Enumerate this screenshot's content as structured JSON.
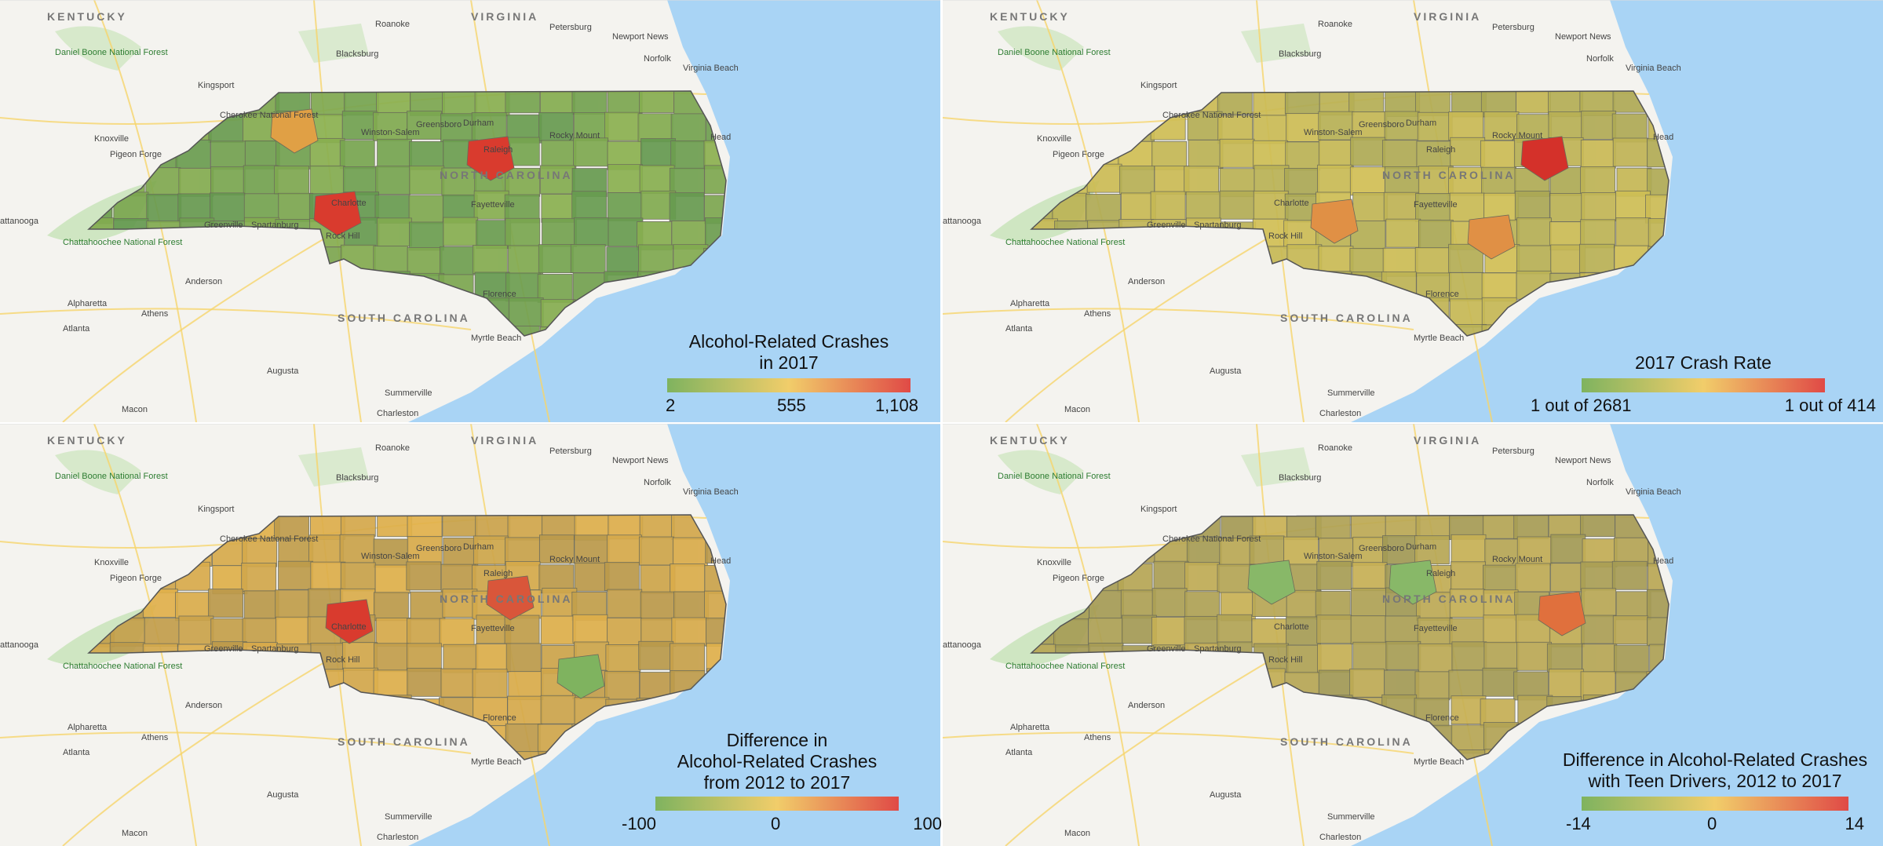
{
  "colors": {
    "ocean": "#a9d4f5",
    "land": "#f4f3ef",
    "park": "#cfe6c2",
    "road": "#f6d56b",
    "scale_low": "#7fb35f",
    "scale_mid": "#f1cd6a",
    "scale_high": "#e04a46"
  },
  "map_labels": {
    "kentucky": "KENTUCKY",
    "virginia": "VIRGINIA",
    "roanoke": "Roanoke",
    "blacksburg": "Blacksburg",
    "petersburg": "Petersburg",
    "newport_news": "Newport News",
    "norfolk": "Norfolk",
    "virginia_beach": "Virginia Beach",
    "daniel_boone": "Daniel Boone National Forest",
    "kingsport": "Kingsport",
    "knoxville": "Knoxville",
    "pigeon_forge": "Pigeon Forge",
    "chattanooga": "attanooga",
    "chattahoochee": "Chattahoochee National Forest",
    "greenville": "Greenville",
    "spartanburg": "Spartanburg",
    "anderson": "Anderson",
    "alpharetta": "Alpharetta",
    "atlanta": "Atlanta",
    "athens": "Athens",
    "augusta": "Augusta",
    "florence": "Florence",
    "south_carolina": "SOUTH CAROLINA",
    "myrtle_beach": "Myrtle Beach",
    "summerville": "Summerville",
    "charleston": "Charleston",
    "macon": "Macon",
    "rock_hill": "Rock Hill",
    "charlotte": "Charlotte",
    "greensboro": "Greensboro",
    "winston_salem": "Winston-Salem",
    "durham": "Durham",
    "raleigh": "Raleigh",
    "fayetteville": "Fayetteville",
    "north_carolina": "NORTH CAROLINA",
    "rocky_mount": "Rocky Mount",
    "head": "Head",
    "cherokee": "Cherokee National Forest"
  },
  "panels": [
    {
      "id": "crashes-2017",
      "legend": {
        "title_lines": [
          "Alcohol-Related Crashes",
          "in 2017"
        ],
        "ticks": [
          "2",
          "555",
          "1,108"
        ]
      }
    },
    {
      "id": "crash-rate-2017",
      "legend": {
        "title_lines": [
          "2017 Crash Rate"
        ],
        "ticks": [
          "1 out of 2681",
          "1 out of 414"
        ]
      }
    },
    {
      "id": "difference-2012-2017",
      "legend": {
        "title_lines": [
          "Difference in",
          "Alcohol-Related Crashes",
          "from 2012 to 2017"
        ],
        "ticks": [
          "-100",
          "0",
          "100"
        ]
      }
    },
    {
      "id": "teen-difference-2012-2017",
      "legend": {
        "title_lines": [
          "Difference in Alcohol-Related Crashes",
          "with Teen Drivers, 2012 to 2017"
        ],
        "ticks": [
          "-14",
          "0",
          "14"
        ]
      }
    }
  ]
}
